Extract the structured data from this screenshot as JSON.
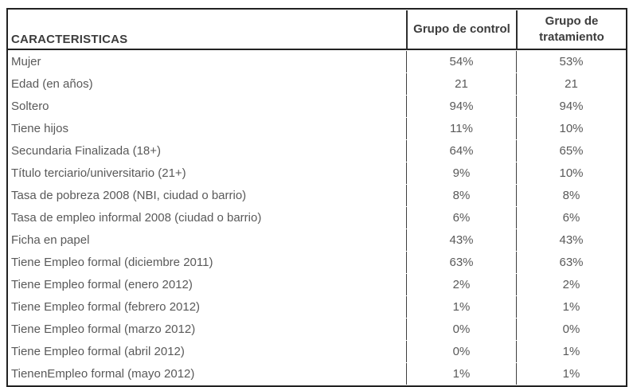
{
  "table": {
    "title": "CARACTERISTICAS",
    "header": {
      "characteristics_label": "CARACTERISTICAS",
      "col_control": "Grupo de control",
      "col_treatment": "Grupo de tratamiento"
    },
    "rows": [
      {
        "label": "Mujer",
        "control": "54%",
        "treatment": "53%"
      },
      {
        "label": "Edad (en años)",
        "control": "21",
        "treatment": "21"
      },
      {
        "label": "Soltero",
        "control": "94%",
        "treatment": "94%"
      },
      {
        "label": "Tiene hijos",
        "control": "11%",
        "treatment": "10%"
      },
      {
        "label": "Secundaria Finalizada (18+)",
        "control": "64%",
        "treatment": "65%"
      },
      {
        "label": "Título terciario/universitario (21+)",
        "control": "9%",
        "treatment": "10%"
      },
      {
        "label": "Tasa de pobreza 2008 (NBI, ciudad o barrio)",
        "control": "8%",
        "treatment": "8%"
      },
      {
        "label": "Tasa de empleo informal 2008 (ciudad o barrio)",
        "control": "6%",
        "treatment": "6%"
      },
      {
        "label": "Ficha en papel",
        "control": "43%",
        "treatment": "43%"
      },
      {
        "label": "Tiene Empleo formal (diciembre 2011)",
        "control": "63%",
        "treatment": "63%"
      },
      {
        "label": "Tiene Empleo formal (enero 2012)",
        "control": "2%",
        "treatment": "2%"
      },
      {
        "label": "Tiene Empleo formal (febrero 2012)",
        "control": "1%",
        "treatment": "1%"
      },
      {
        "label": "Tiene Empleo formal (marzo 2012)",
        "control": "0%",
        "treatment": "0%"
      },
      {
        "label": "Tiene Empleo formal (abril 2012)",
        "control": "0%",
        "treatment": "1%"
      },
      {
        "label": "TienenEmpleo formal (mayo 2012)",
        "control": "1%",
        "treatment": "1%"
      }
    ]
  },
  "colors": {
    "border_outer": "#222222",
    "border_divider": "#3f3f3f",
    "header_text": "#3d3d3d",
    "body_text": "#595959",
    "background": "#ffffff"
  }
}
